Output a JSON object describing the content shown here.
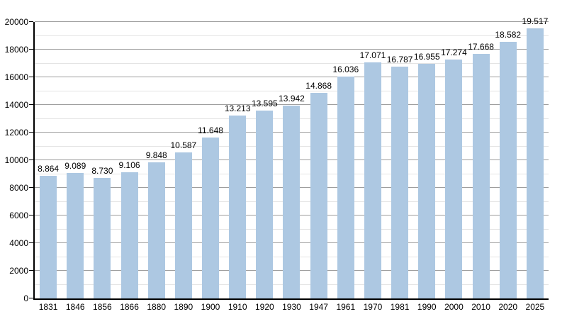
{
  "chart_data": {
    "type": "bar",
    "title": "",
    "xlabel": "",
    "ylabel": "",
    "categories": [
      "1831",
      "1846",
      "1856",
      "1866",
      "1880",
      "1890",
      "1900",
      "1910",
      "1920",
      "1930",
      "1947",
      "1961",
      "1970",
      "1981",
      "1990",
      "2000",
      "2010",
      "2020",
      "2025"
    ],
    "values": [
      8864,
      9089,
      8730,
      9106,
      9848,
      10587,
      11648,
      13213,
      13595,
      13942,
      14868,
      16036,
      17071,
      16787,
      16955,
      17274,
      17668,
      18582,
      19517
    ],
    "value_labels": [
      "8.864",
      "9.089",
      "8.730",
      "9.106",
      "9.848",
      "10.587",
      "11.648",
      "13.213",
      "13.595",
      "13.942",
      "14.868",
      "16.036",
      "17.071",
      "16.787",
      "16.955",
      "17.274",
      "17.668",
      "18.582",
      "19.517"
    ],
    "ylim": [
      0,
      20000
    ],
    "y_major_step": 2000,
    "y_minor_step": 1000,
    "y_tick_labels": [
      "0",
      "2000",
      "4000",
      "6000",
      "8000",
      "10000",
      "12000",
      "14000",
      "16000",
      "18000",
      "20000"
    ],
    "grid": "horizontal",
    "legend": "none",
    "colors": {
      "bar": "#adc8e2",
      "grid_major": "#9e9e9e",
      "grid_minor": "#e4e4e4",
      "axis": "#000000",
      "text": "#000000",
      "background": "#ffffff"
    }
  }
}
